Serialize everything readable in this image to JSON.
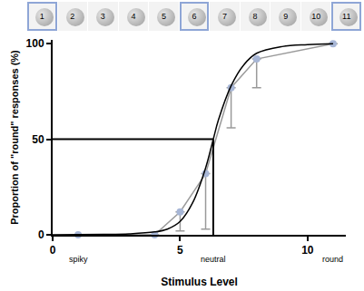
{
  "chart_data": {
    "type": "line",
    "stimuli": [
      "1",
      "2",
      "3",
      "4",
      "5",
      "6",
      "7",
      "8",
      "9",
      "10",
      "11"
    ],
    "highlighted_stimuli": [
      "1",
      "6",
      "11"
    ],
    "xlabel": "Stimulus Level",
    "ylabel": "Proportion of \"round\" responses (%)",
    "xlim": [
      0,
      11.5
    ],
    "xticks": [
      0,
      5,
      10
    ],
    "ylim": [
      0,
      102
    ],
    "yticks": [
      0,
      50,
      100
    ],
    "grid": false,
    "series": [
      {
        "type": "scatter",
        "color": "#a7b6d6",
        "marker": "circle",
        "x": [
          1,
          4,
          5,
          6,
          7,
          8,
          11
        ],
        "values": [
          0,
          0,
          12,
          32,
          77,
          92,
          100
        ],
        "error_minus": [
          0,
          0,
          10,
          29,
          21,
          15,
          0
        ]
      },
      {
        "type": "line",
        "color": "#000000",
        "line_style": "solid",
        "x": [
          0,
          2,
          3,
          4,
          4.5,
          5,
          5.5,
          6,
          6.3,
          6.5,
          7,
          7.5,
          8,
          9,
          10,
          11
        ],
        "values": [
          0,
          0.2,
          0.5,
          1.5,
          3,
          7,
          17,
          35,
          50,
          60,
          78,
          89,
          95,
          98.5,
          99.5,
          100
        ]
      }
    ],
    "threshold": {
      "x": 6.3,
      "y": 50
    },
    "annotations": [
      {
        "x": 1,
        "text": "spiky"
      },
      {
        "x": 6.3,
        "text": "neutral"
      },
      {
        "x": 11,
        "text": "round"
      }
    ]
  }
}
